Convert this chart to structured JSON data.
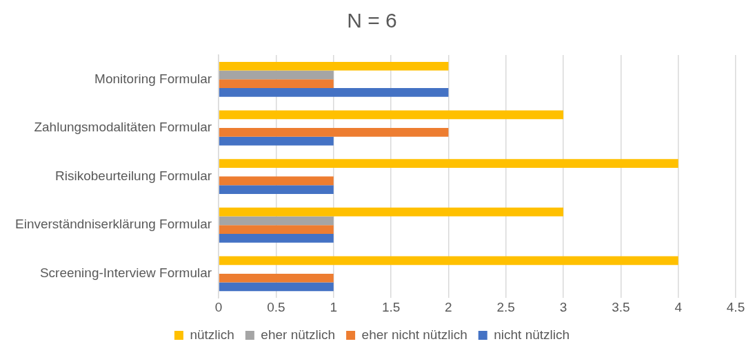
{
  "chart_data": {
    "type": "bar",
    "orientation": "horizontal",
    "title": "N = 6",
    "categories": [
      "Monitoring Formular",
      "Zahlungsmodalitäten Formular",
      "Risikobeurteilung Formular",
      "Einverständniserklärung Formular",
      "Screening-Interview Formular"
    ],
    "series": [
      {
        "name": "nützlich",
        "color": "#ffc000",
        "values": [
          2,
          3,
          4,
          3,
          4
        ]
      },
      {
        "name": "eher nützlich",
        "color": "#a5a5a5",
        "values": [
          1,
          0,
          0,
          1,
          0
        ]
      },
      {
        "name": "eher nicht nützlich",
        "color": "#ed7d31",
        "values": [
          1,
          2,
          1,
          1,
          1
        ]
      },
      {
        "name": "nicht nützlich",
        "color": "#4472c4",
        "values": [
          2,
          1,
          1,
          1,
          1
        ]
      }
    ],
    "xlim": [
      0,
      4.5
    ],
    "xticks": [
      0,
      0.5,
      1,
      1.5,
      2,
      2.5,
      3,
      3.5,
      4,
      4.5
    ],
    "grid": "x",
    "legend": "bottom"
  }
}
